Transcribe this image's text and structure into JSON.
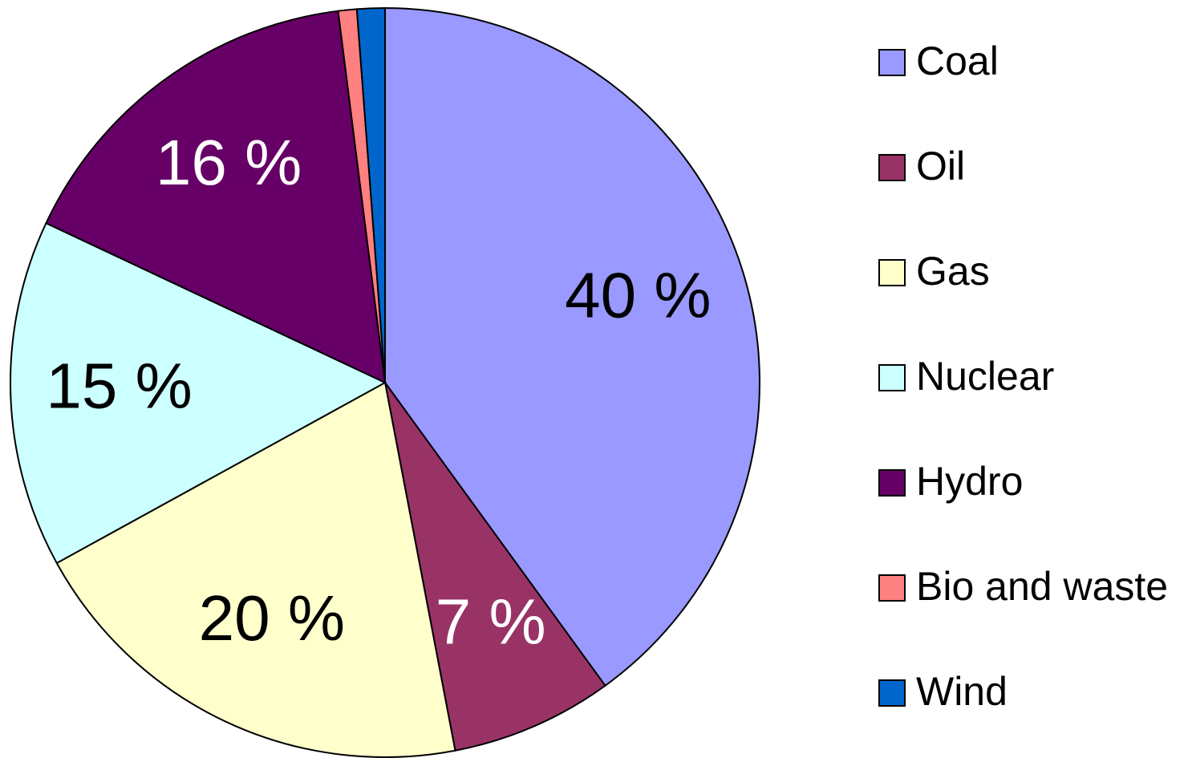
{
  "chart_data": {
    "type": "pie",
    "categories": [
      "Coal",
      "Oil",
      "Gas",
      "Nuclear",
      "Hydro",
      "Bio and waste",
      "Wind"
    ],
    "values": [
      40,
      7,
      20,
      15,
      16,
      0.8,
      1.2
    ],
    "value_labels": [
      "40 %",
      "7 %",
      "20 %",
      "15 %",
      "16 %",
      null,
      null
    ],
    "colors": [
      "#9999ff",
      "#993366",
      "#ffffcc",
      "#ccffff",
      "#660066",
      "#ff8080",
      "#0066cc"
    ],
    "label_colors": [
      "#000000",
      "#ffffff",
      "#000000",
      "#000000",
      "#ffffff",
      "#000000",
      "#000000"
    ],
    "legend": "right"
  }
}
